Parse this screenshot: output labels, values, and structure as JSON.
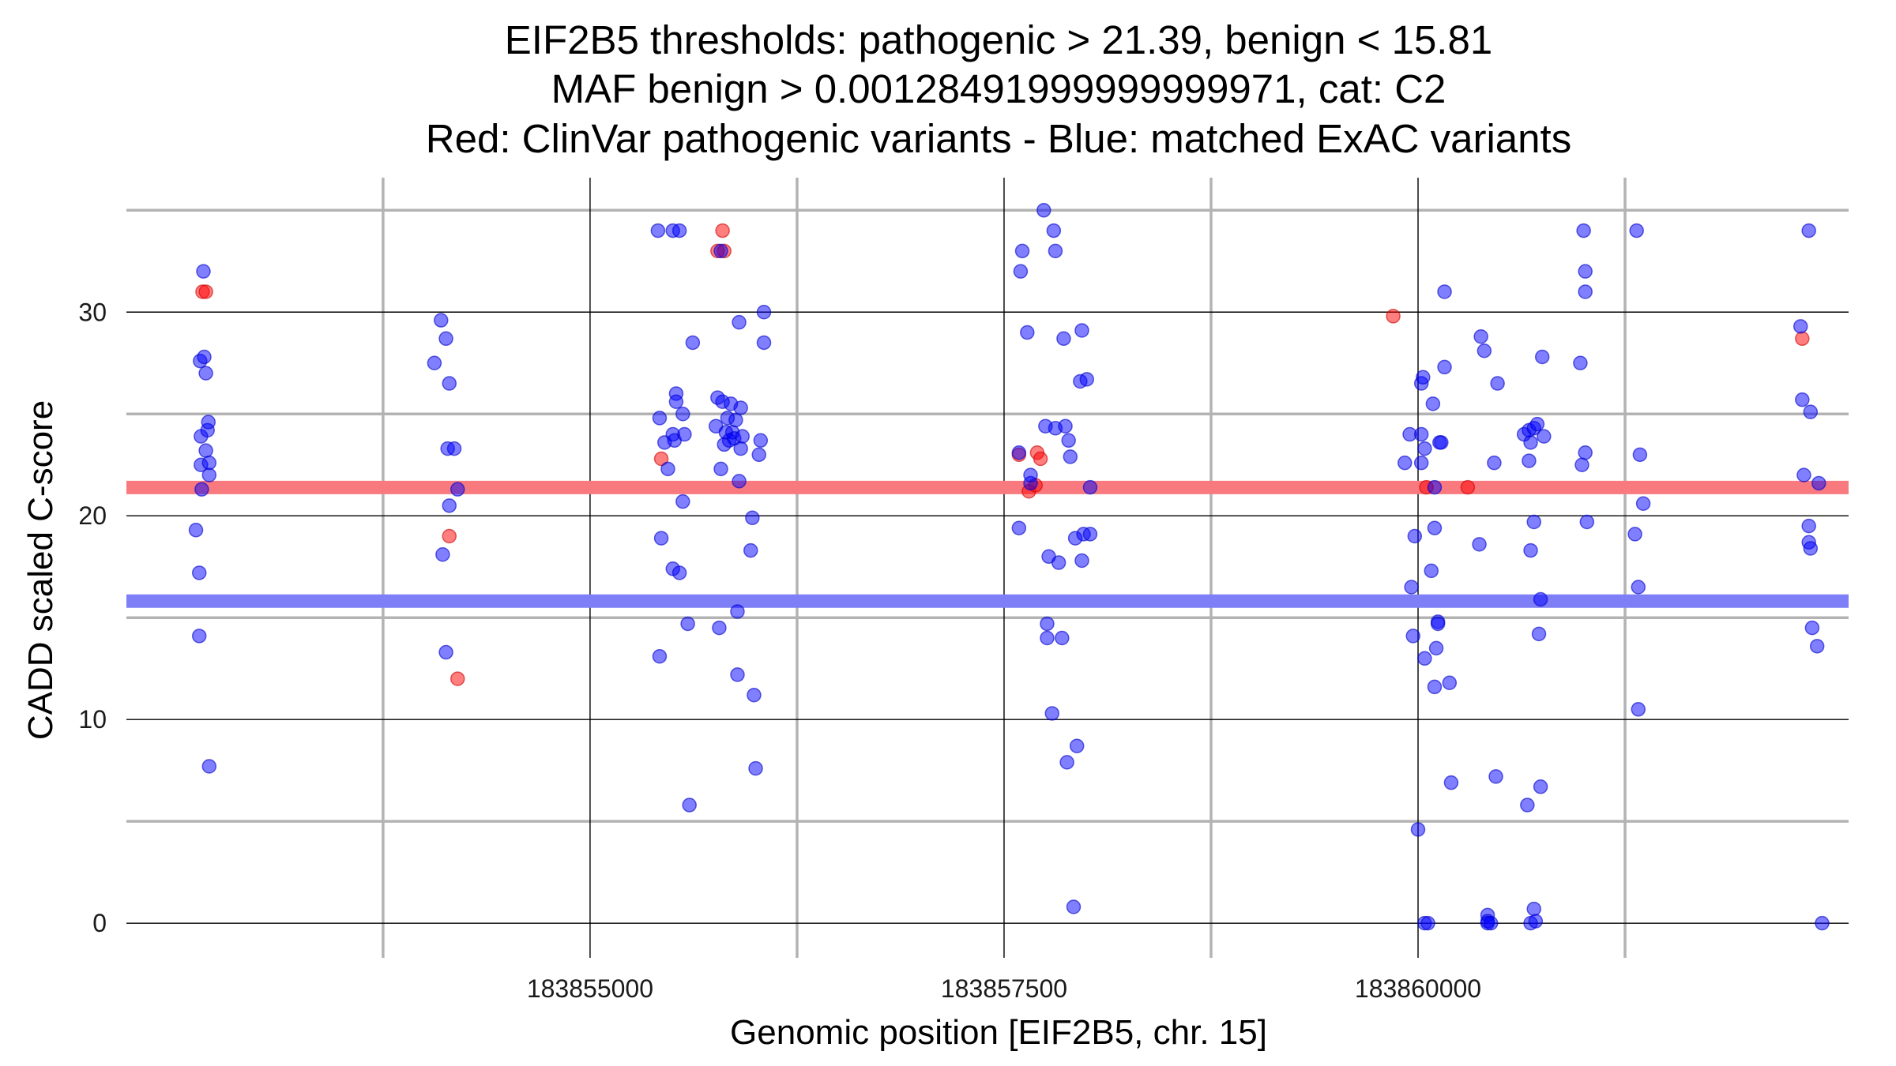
{
  "chart_data": {
    "type": "scatter",
    "title_lines": [
      "EIF2B5 thresholds: pathogenic > 21.39, benign < 15.81",
      "MAF benign > 0.00128491999999999971, cat: C2",
      "Red: ClinVar pathogenic variants - Blue: matched ExAC variants"
    ],
    "xlabel": "Genomic position [EIF2B5, chr. 15]",
    "ylabel": "CADD scaled C-score",
    "xlim": [
      183852200,
      183862600
    ],
    "ylim": [
      -1.7,
      36.6
    ],
    "x_major_ticks": [
      183855000,
      183857500,
      183860000
    ],
    "x_minor_ticks": [
      183853750,
      183856250,
      183858750,
      183861250
    ],
    "x_tick_labels": [
      "183855000",
      "183857500",
      "183860000"
    ],
    "y_major_ticks": [
      0,
      10,
      20,
      30
    ],
    "y_minor_ticks": [
      5,
      15,
      25,
      35
    ],
    "y_tick_labels": [
      "0",
      "10",
      "20",
      "30"
    ],
    "grid": true,
    "legend": "none",
    "thresholds": [
      {
        "name": "pathogenic",
        "value": 21.39,
        "color": "#f87a7f"
      },
      {
        "name": "benign",
        "value": 15.81,
        "color": "#7e7ef7"
      }
    ],
    "series": [
      {
        "color": "#ff0000",
        "points": [
          [
            183852660,
            31.0
          ],
          [
            183852680,
            31.0
          ],
          [
            183854150,
            19.0
          ],
          [
            183854200,
            12.0
          ],
          [
            183855430,
            22.8
          ],
          [
            183855770,
            33.0
          ],
          [
            183855800,
            34.0
          ],
          [
            183855810,
            33.0
          ],
          [
            183857590,
            23.0
          ],
          [
            183857650,
            21.2
          ],
          [
            183857690,
            21.5
          ],
          [
            183857700,
            23.1
          ],
          [
            183857720,
            22.8
          ],
          [
            183859850,
            29.8
          ],
          [
            183860050,
            21.4
          ],
          [
            183860300,
            21.4
          ],
          [
            183862320,
            28.7
          ]
        ]
      },
      {
        "color": "#0000ff",
        "points": [
          [
            183852640,
            17.2
          ],
          [
            183852640,
            14.1
          ],
          [
            183852620,
            19.3
          ],
          [
            183852645,
            27.6
          ],
          [
            183852650,
            22.5
          ],
          [
            183852650,
            23.9
          ],
          [
            183852655,
            21.3
          ],
          [
            183852665,
            32.0
          ],
          [
            183852670,
            27.8
          ],
          [
            183852680,
            23.2
          ],
          [
            183852680,
            27.0
          ],
          [
            183852690,
            24.2
          ],
          [
            183852695,
            24.6
          ],
          [
            183852700,
            22.6
          ],
          [
            183852700,
            22.0
          ],
          [
            183852700,
            7.7
          ],
          [
            183854060,
            27.5
          ],
          [
            183854100,
            29.6
          ],
          [
            183854110,
            18.1
          ],
          [
            183854130,
            28.7
          ],
          [
            183854130,
            13.3
          ],
          [
            183854140,
            23.3
          ],
          [
            183854150,
            20.5
          ],
          [
            183854150,
            26.5
          ],
          [
            183854180,
            23.3
          ],
          [
            183854200,
            21.3
          ],
          [
            183855410,
            34.0
          ],
          [
            183855420,
            13.1
          ],
          [
            183855430,
            18.9
          ],
          [
            183855420,
            24.8
          ],
          [
            183855450,
            23.6
          ],
          [
            183855470,
            22.3
          ],
          [
            183855500,
            24.0
          ],
          [
            183855500,
            17.4
          ],
          [
            183855500,
            34.0
          ],
          [
            183855510,
            23.7
          ],
          [
            183855520,
            26.0
          ],
          [
            183855520,
            25.6
          ],
          [
            183855540,
            34.0
          ],
          [
            183855540,
            17.2
          ],
          [
            183855560,
            25.0
          ],
          [
            183855560,
            20.7
          ],
          [
            183855570,
            24.0
          ],
          [
            183855590,
            14.7
          ],
          [
            183855600,
            5.8
          ],
          [
            183855620,
            28.5
          ],
          [
            183855760,
            24.4
          ],
          [
            183855770,
            25.8
          ],
          [
            183855780,
            14.5
          ],
          [
            183855790,
            33.0
          ],
          [
            183855790,
            22.3
          ],
          [
            183855800,
            25.6
          ],
          [
            183855810,
            23.5
          ],
          [
            183855820,
            24.1
          ],
          [
            183855830,
            24.8
          ],
          [
            183855840,
            23.7
          ],
          [
            183855850,
            25.5
          ],
          [
            183855860,
            24.1
          ],
          [
            183855870,
            23.8
          ],
          [
            183855880,
            24.7
          ],
          [
            183855890,
            15.3
          ],
          [
            183855890,
            12.2
          ],
          [
            183855900,
            29.5
          ],
          [
            183855900,
            21.7
          ],
          [
            183855910,
            25.3
          ],
          [
            183855910,
            23.3
          ],
          [
            183855920,
            23.9
          ],
          [
            183855970,
            18.3
          ],
          [
            183855980,
            19.9
          ],
          [
            183855990,
            11.2
          ],
          [
            183856000,
            7.6
          ],
          [
            183856020,
            23.0
          ],
          [
            183856030,
            23.7
          ],
          [
            183856050,
            28.5
          ],
          [
            183856050,
            30.0
          ],
          [
            183857590,
            19.4
          ],
          [
            183857590,
            23.1
          ],
          [
            183857600,
            32.0
          ],
          [
            183857610,
            33.0
          ],
          [
            183857640,
            29.0
          ],
          [
            183857660,
            21.6
          ],
          [
            183857660,
            22.0
          ],
          [
            183857740,
            35.0
          ],
          [
            183857750,
            24.4
          ],
          [
            183857760,
            14.7
          ],
          [
            183857760,
            14.0
          ],
          [
            183857770,
            18.0
          ],
          [
            183857790,
            10.3
          ],
          [
            183857800,
            34.0
          ],
          [
            183857810,
            24.3
          ],
          [
            183857810,
            33.0
          ],
          [
            183857830,
            17.7
          ],
          [
            183857850,
            14.0
          ],
          [
            183857860,
            28.7
          ],
          [
            183857870,
            24.4
          ],
          [
            183857880,
            7.9
          ],
          [
            183857890,
            23.7
          ],
          [
            183857900,
            22.9
          ],
          [
            183857920,
            0.8
          ],
          [
            183857930,
            18.9
          ],
          [
            183857940,
            8.7
          ],
          [
            183857960,
            26.6
          ],
          [
            183857970,
            29.1
          ],
          [
            183857970,
            17.8
          ],
          [
            183857980,
            19.1
          ],
          [
            183858000,
            26.7
          ],
          [
            183858020,
            19.1
          ],
          [
            183858020,
            21.4
          ],
          [
            183859920,
            22.6
          ],
          [
            183859950,
            24.0
          ],
          [
            183859960,
            16.5
          ],
          [
            183859970,
            14.1
          ],
          [
            183859980,
            19.0
          ],
          [
            183860000,
            4.6
          ],
          [
            183860020,
            22.6
          ],
          [
            183860020,
            26.5
          ],
          [
            183860020,
            24.0
          ],
          [
            183860030,
            26.8
          ],
          [
            183860040,
            13.0
          ],
          [
            183860040,
            23.3
          ],
          [
            183860040,
            0.0
          ],
          [
            183860060,
            0.0
          ],
          [
            183860080,
            17.3
          ],
          [
            183860090,
            25.5
          ],
          [
            183860100,
            19.4
          ],
          [
            183860100,
            21.4
          ],
          [
            183860100,
            11.6
          ],
          [
            183860110,
            13.5
          ],
          [
            183860120,
            14.8
          ],
          [
            183860120,
            14.7
          ],
          [
            183860130,
            23.6
          ],
          [
            183860140,
            23.6
          ],
          [
            183860160,
            31.0
          ],
          [
            183860160,
            27.3
          ],
          [
            183860190,
            11.8
          ],
          [
            183860200,
            6.9
          ],
          [
            183860370,
            18.6
          ],
          [
            183860380,
            28.8
          ],
          [
            183860400,
            28.1
          ],
          [
            183860420,
            0.4
          ],
          [
            183860420,
            0.1
          ],
          [
            183860420,
            0.0
          ],
          [
            183860440,
            0.0
          ],
          [
            183860460,
            22.6
          ],
          [
            183860470,
            7.2
          ],
          [
            183860480,
            26.5
          ],
          [
            183860640,
            24.0
          ],
          [
            183860660,
            5.8
          ],
          [
            183860670,
            24.2
          ],
          [
            183860670,
            22.7
          ],
          [
            183860680,
            18.3
          ],
          [
            183860680,
            23.6
          ],
          [
            183860680,
            0.0
          ],
          [
            183860700,
            24.3
          ],
          [
            183860700,
            19.7
          ],
          [
            183860700,
            0.7
          ],
          [
            183860710,
            0.1
          ],
          [
            183860720,
            24.5
          ],
          [
            183860730,
            14.2
          ],
          [
            183860740,
            15.9
          ],
          [
            183860740,
            6.7
          ],
          [
            183860750,
            27.8
          ],
          [
            183860760,
            23.9
          ],
          [
            183860980,
            27.5
          ],
          [
            183860990,
            22.5
          ],
          [
            183861000,
            34.0
          ],
          [
            183861010,
            23.1
          ],
          [
            183861010,
            31.0
          ],
          [
            183861010,
            32.0
          ],
          [
            183861020,
            19.7
          ],
          [
            183861310,
            19.1
          ],
          [
            183861320,
            34.0
          ],
          [
            183861330,
            10.5
          ],
          [
            183861330,
            16.5
          ],
          [
            183861340,
            23.0
          ],
          [
            183861360,
            20.6
          ],
          [
            183862310,
            29.3
          ],
          [
            183862320,
            25.7
          ],
          [
            183862330,
            22.0
          ],
          [
            183862360,
            34.0
          ],
          [
            183862360,
            19.5
          ],
          [
            183862360,
            18.7
          ],
          [
            183862370,
            18.4
          ],
          [
            183862370,
            25.1
          ],
          [
            183862380,
            14.5
          ],
          [
            183862410,
            13.6
          ],
          [
            183862420,
            21.6
          ],
          [
            183862440,
            0.0
          ]
        ]
      }
    ]
  }
}
